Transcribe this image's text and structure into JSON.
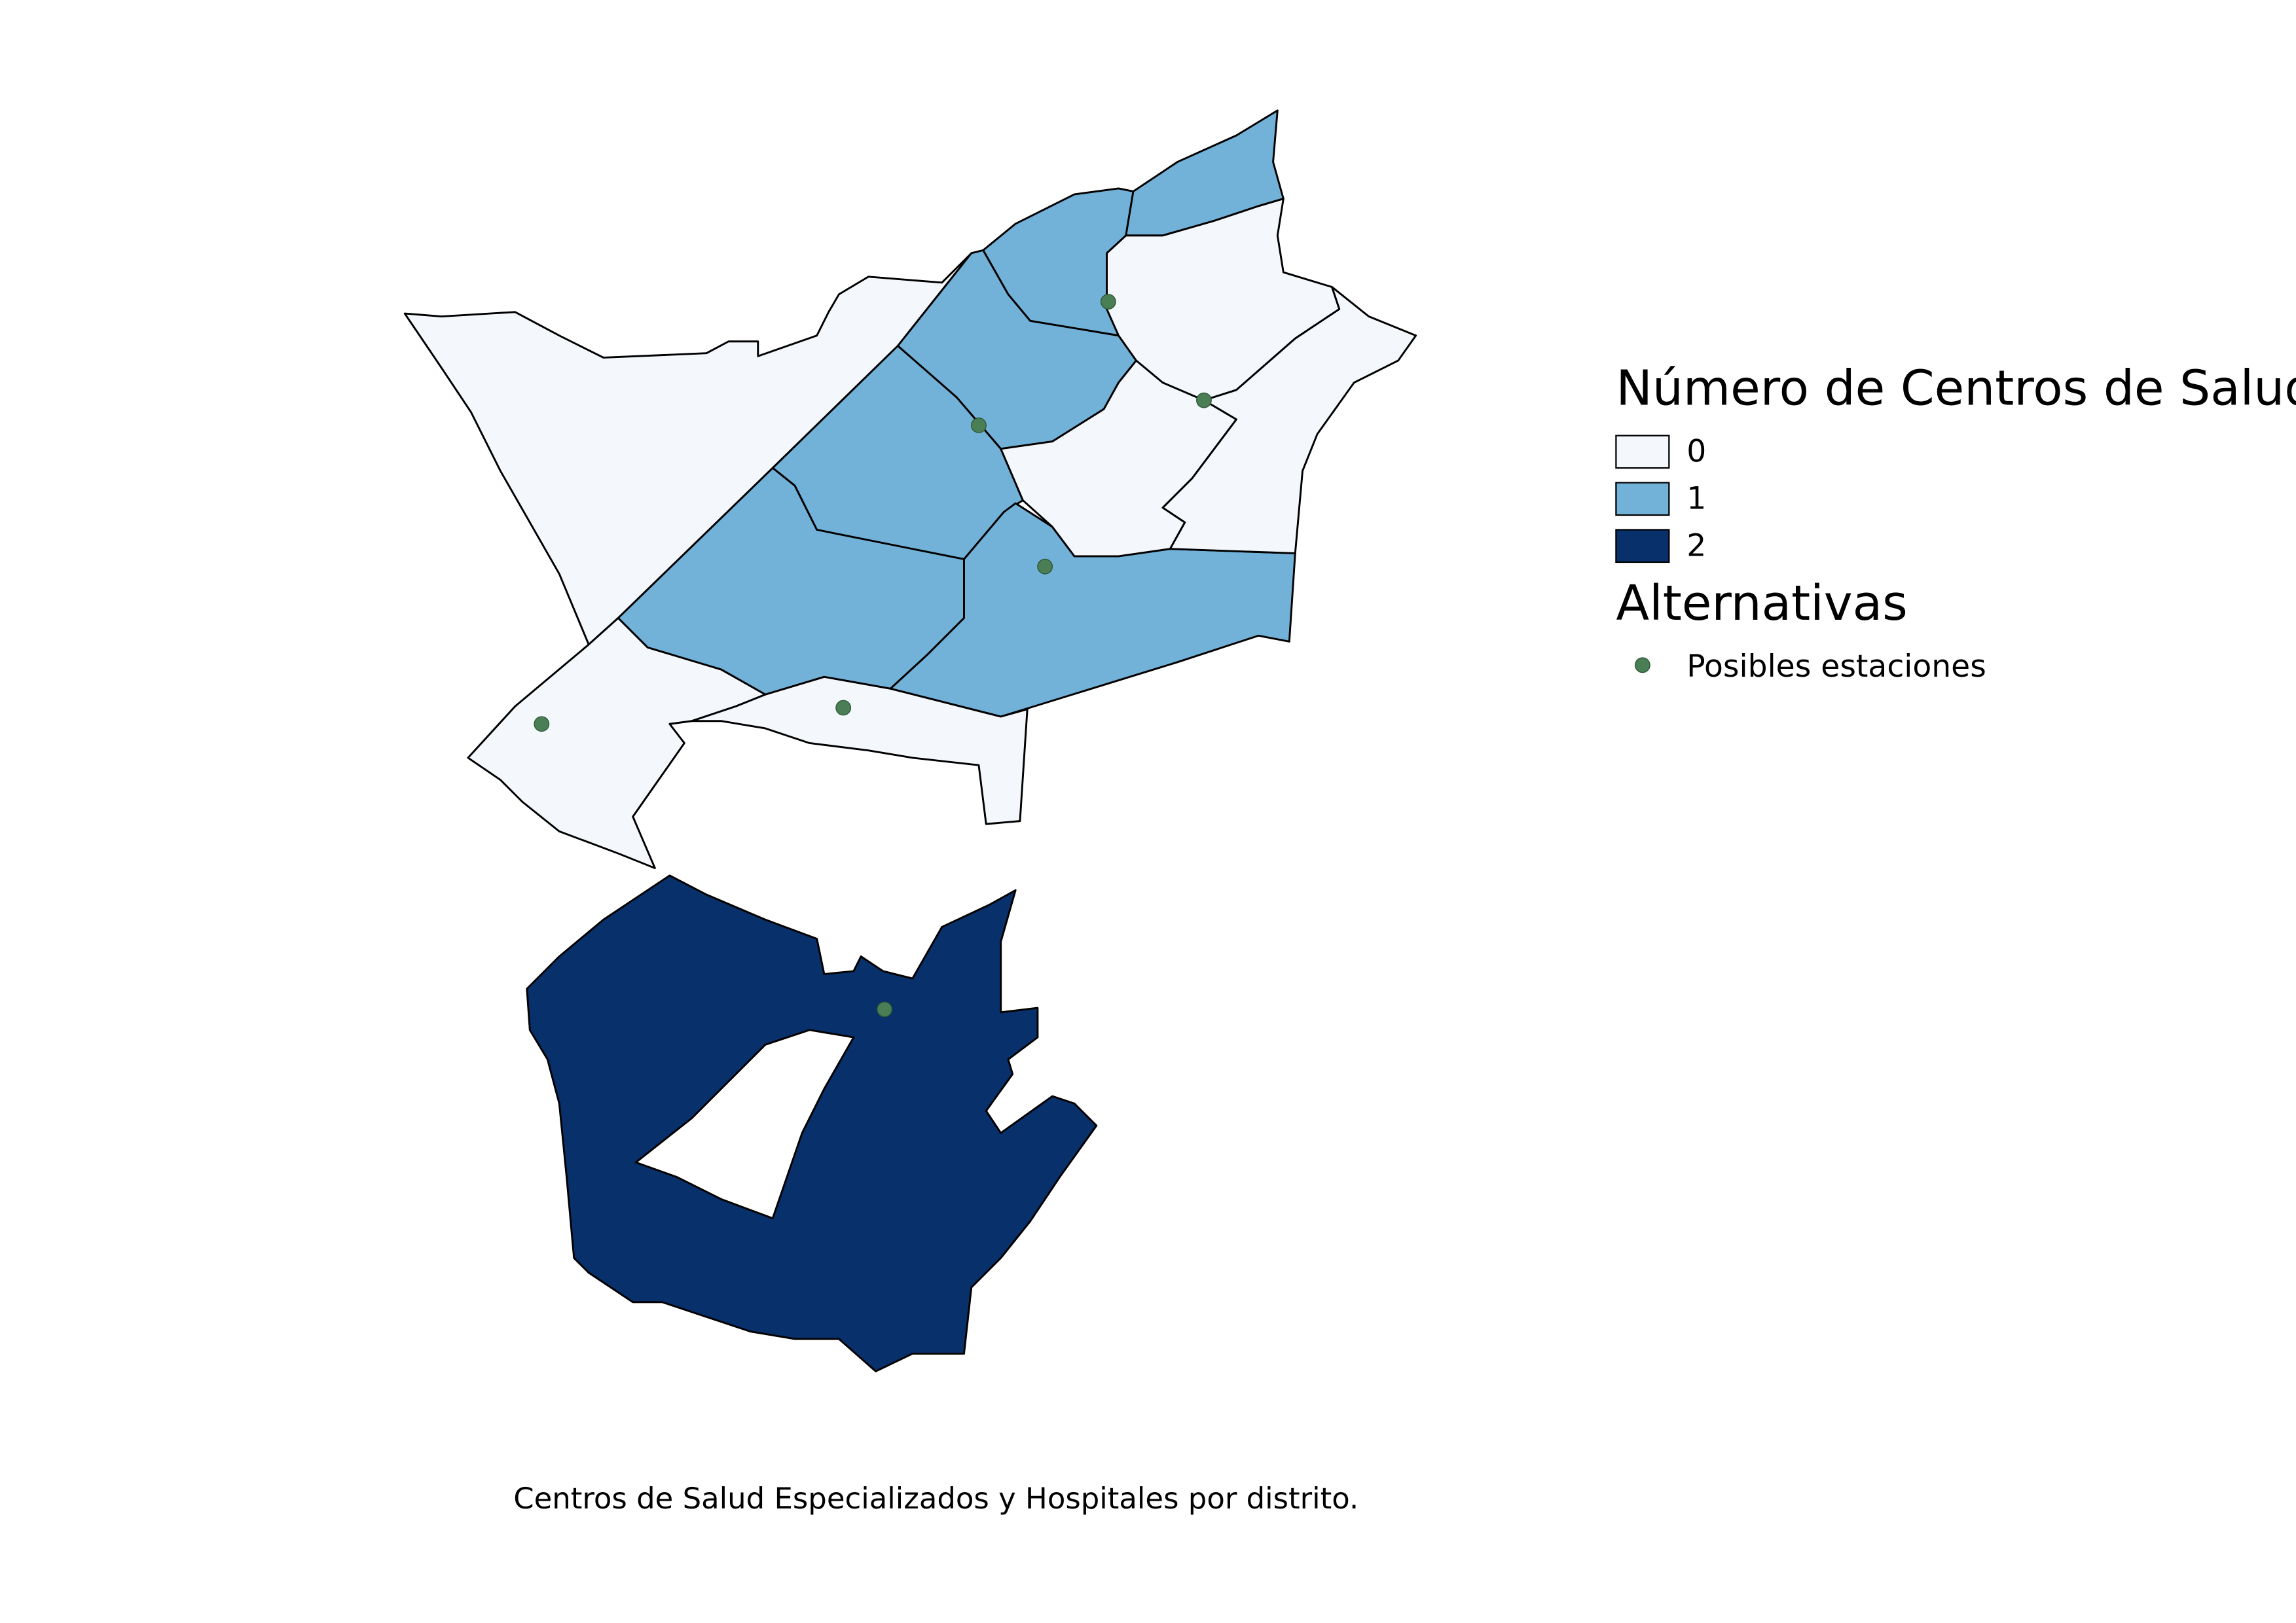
{
  "legend": {
    "title": "Número de Centros de Salud",
    "classes": [
      {
        "value": 0,
        "color": "#f4f8fd"
      },
      {
        "value": 1,
        "color": "#73b2d8"
      },
      {
        "value": 2,
        "color": "#08306b"
      }
    ]
  },
  "alternatives": {
    "title": "Alternativas",
    "label": "Posibles estaciones",
    "color": "#4a7f56"
  },
  "districts": {
    "values": [
      0,
      1,
      1,
      1,
      1,
      1,
      1,
      0,
      0,
      0,
      0,
      0,
      2
    ]
  },
  "caption": "Centros de Salud Especializados y Hospitales por distrito."
}
